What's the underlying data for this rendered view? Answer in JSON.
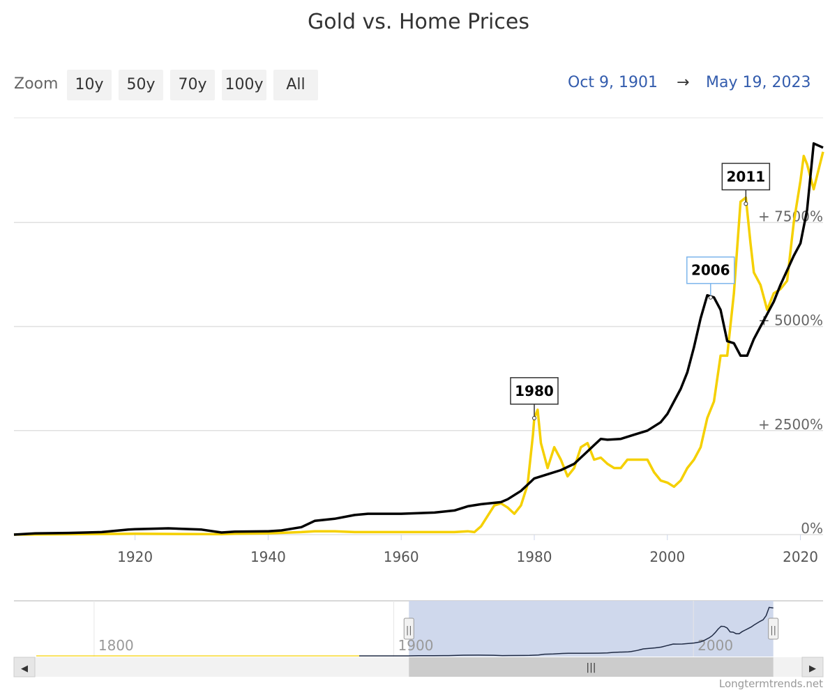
{
  "title": "Gold vs. Home Prices",
  "zoom": {
    "label": "Zoom",
    "buttons": [
      "10y",
      "50y",
      "70y",
      "100y",
      "All"
    ]
  },
  "range": {
    "from": "Oct 9, 1901",
    "arrow": "→",
    "to": "May 19, 2023"
  },
  "credit": "Longtermtrends.net",
  "colors": {
    "gold": "#f5d000",
    "home": "#000000",
    "grid": "#e0e0e0",
    "navigator_mask": "#ccd6eb"
  },
  "chart_data": {
    "type": "line",
    "xlim": [
      1901.8,
      2023.4
    ],
    "ylim": [
      0,
      10000
    ],
    "y_tick_labels": [
      "0%",
      "+ 2500%",
      "+ 5000%",
      "+ 7500%"
    ],
    "y_ticks": [
      0,
      2500,
      5000,
      7500
    ],
    "x_ticks": [
      1920,
      1940,
      1960,
      1980,
      2000,
      2020
    ],
    "x_tick_labels": [
      "1920",
      "1940",
      "1960",
      "1980",
      "2000",
      "2020"
    ],
    "series": [
      {
        "id": "home",
        "color": "#000000",
        "x": [
          1901.8,
          1905,
          1910,
          1915,
          1919,
          1920,
          1925,
          1930,
          1933,
          1935,
          1940,
          1942,
          1945,
          1947,
          1950,
          1953,
          1955,
          1960,
          1965,
          1968,
          1970,
          1972,
          1975,
          1976,
          1978,
          1979,
          1980,
          1982,
          1984,
          1986,
          1988,
          1989,
          1990,
          1991,
          1993,
          1995,
          1997,
          1999,
          2000,
          2001,
          2002,
          2003,
          2004,
          2005,
          2006,
          2007,
          2008,
          2009,
          2010,
          2011,
          2012,
          2013,
          2014,
          2015,
          2016,
          2017,
          2018,
          2019,
          2020,
          2021,
          2022,
          2023.4
        ],
        "y": [
          0,
          30,
          40,
          60,
          120,
          130,
          150,
          120,
          50,
          70,
          80,
          100,
          180,
          330,
          380,
          470,
          500,
          500,
          530,
          580,
          680,
          730,
          780,
          850,
          1050,
          1200,
          1350,
          1450,
          1550,
          1700,
          2000,
          2150,
          2300,
          2280,
          2300,
          2400,
          2500,
          2700,
          2900,
          3200,
          3500,
          3900,
          4500,
          5200,
          5750,
          5700,
          5400,
          4650,
          4600,
          4300,
          4300,
          4700,
          5000,
          5300,
          5600,
          6000,
          6350,
          6700,
          7000,
          7800,
          9400,
          9300
        ]
      },
      {
        "id": "gold",
        "color": "#f5d000",
        "x": [
          1901.8,
          1920,
          1933,
          1935,
          1940,
          1945,
          1947,
          1950,
          1953,
          1960,
          1968,
          1970,
          1971,
          1972,
          1973,
          1974,
          1975,
          1976,
          1977,
          1978,
          1979,
          1979.8,
          1980,
          1980.5,
          1981,
          1982,
          1983,
          1984,
          1985,
          1986,
          1987,
          1988,
          1989,
          1990,
          1991,
          1992,
          1993,
          1994,
          1995,
          1996,
          1997,
          1998,
          1999,
          2000,
          2001,
          2002,
          2003,
          2004,
          2005,
          2006,
          2007,
          2008,
          2009,
          2010,
          2011,
          2011.8,
          2012.5,
          2013,
          2014,
          2015,
          2016,
          2017,
          2018,
          2019,
          2020,
          2020.5,
          2021,
          2022,
          2023.4
        ],
        "y": [
          0,
          20,
          10,
          20,
          30,
          60,
          80,
          80,
          60,
          60,
          60,
          80,
          60,
          200,
          450,
          700,
          750,
          650,
          500,
          700,
          1200,
          2400,
          2800,
          3000,
          2200,
          1600,
          2100,
          1800,
          1400,
          1600,
          2100,
          2200,
          1800,
          1850,
          1700,
          1600,
          1600,
          1800,
          1800,
          1800,
          1800,
          1500,
          1300,
          1250,
          1150,
          1300,
          1600,
          1800,
          2100,
          2800,
          3200,
          4300,
          4300,
          5800,
          8000,
          8100,
          7000,
          6300,
          6000,
          5400,
          5800,
          5900,
          6100,
          7500,
          8500,
          9100,
          8900,
          8300,
          9200
        ]
      }
    ],
    "annotations": [
      {
        "label": "1980",
        "series": "home_point_gold",
        "x": 1980,
        "y": 2800,
        "border": "#333333"
      },
      {
        "label": "2006",
        "series": "home",
        "x": 2006.5,
        "y": 5700,
        "border": "#7cb5ec"
      },
      {
        "label": "2011",
        "series": "gold",
        "x": 2011.8,
        "y": 7950,
        "border": "#333333"
      }
    ]
  },
  "navigator": {
    "tick_labels": [
      "1800",
      "1900",
      "2000"
    ],
    "ticks": [
      1800,
      1900,
      2000
    ],
    "xlim": [
      1770,
      2040
    ],
    "selected_range": [
      1901.8,
      2023.4
    ],
    "handle_glyph": "||",
    "scroll_glyph": "|||",
    "left_arrow": "◀",
    "right_arrow": "▶"
  }
}
